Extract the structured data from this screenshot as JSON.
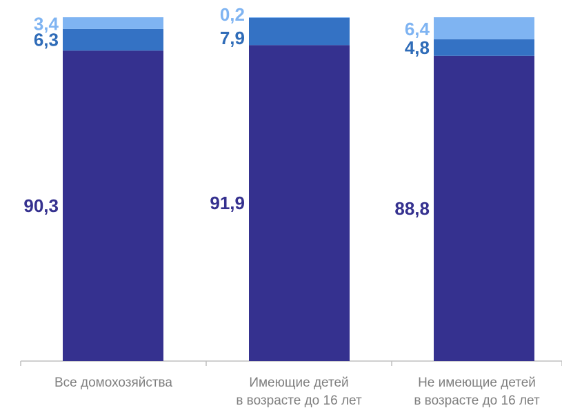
{
  "chart_data": {
    "type": "bar",
    "stacked": true,
    "categories": [
      [
        "Все домохозяйства"
      ],
      [
        "Имеющие детей",
        "в возрасте до 16 лет"
      ],
      [
        "Не имеющие детей",
        "в возрасте до 16 лет"
      ]
    ],
    "series": [
      {
        "values": [
          90.3,
          91.9,
          88.8
        ],
        "labels": [
          "90,3",
          "91,9",
          "88,8"
        ],
        "color": "#35318f",
        "label_color": "#35318f"
      },
      {
        "values": [
          6.3,
          7.9,
          4.8
        ],
        "labels": [
          "6,3",
          "7,9",
          "4,8"
        ],
        "color": "#3472c4",
        "label_color": "#2f6cb8"
      },
      {
        "values": [
          3.4,
          0.2,
          6.4
        ],
        "labels": [
          "3,4",
          "0,2",
          "6,4"
        ],
        "color": "#7fb4f2",
        "label_color": "#7fb4f2"
      }
    ],
    "ylim": [
      0,
      100
    ],
    "grid": false,
    "legend": false
  }
}
